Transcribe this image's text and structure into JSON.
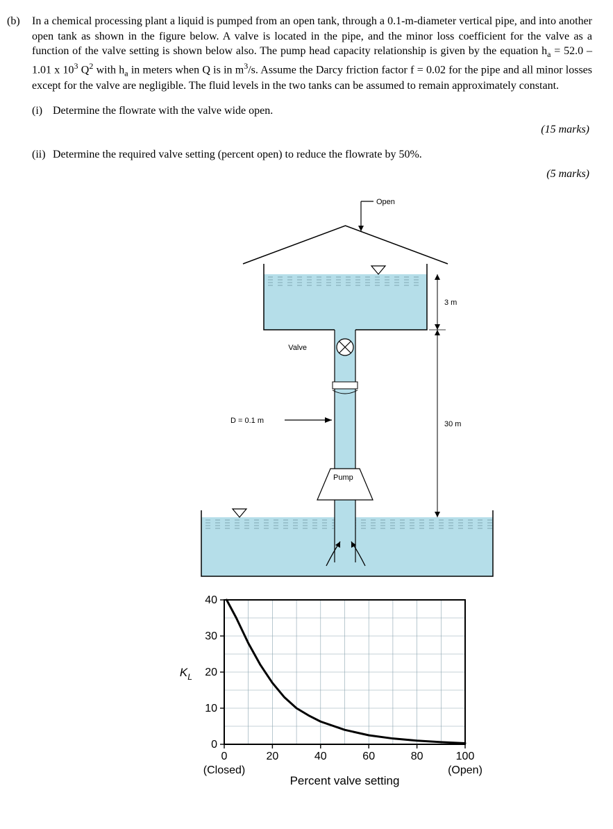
{
  "question_label": "(b)",
  "paragraph_parts": {
    "p1": "In a chemical processing plant a liquid is pumped from an open tank, through a 0.1-m-diameter vertical pipe, and into another open tank as shown in the figure below. A valve is located in the pipe, and the minor loss coefficient for the valve as a function of the valve setting is shown below also. The pump head capacity relationship is given by the equation h",
    "sub1": "a",
    "p2": " = 52.0 – 1.01 x 10",
    "sup1": "3",
    "p3": " Q",
    "sup2": "2",
    "p4": " with h",
    "sub2": "a",
    "p5": " in meters when Q is in m",
    "sup3": "3",
    "p6": "/s. Assume the Darcy friction factor f = 0.02 for the pipe and all minor losses except for the valve are negligible. The fluid levels in the two tanks can be assumed to remain approximately constant."
  },
  "subq1_label": "(i)",
  "subq1_text": "Determine the flowrate with the valve wide open.",
  "marks1": "(15 marks)",
  "subq2_label": "(ii)",
  "subq2_text": "Determine the required valve setting (percent open) to reduce the flowrate by 50%.",
  "marks2": "(5 marks)",
  "diagram": {
    "water_fill": "#b5dee9",
    "water_line": "#668e9a",
    "stroke": "#000000",
    "open_label": "Open",
    "valve_label": "Valve",
    "pump_label": "Pump",
    "d_label": "D = 0.1 m",
    "h_top": "3 m",
    "h_bottom": "30 m",
    "label_fontsize": 11
  },
  "chart": {
    "type": "line",
    "x_label": "Percent valve setting",
    "y_label_main": "K",
    "y_label_sub": "L",
    "x_min": 0,
    "x_max": 100,
    "x_tick_step": 20,
    "y_min": 0,
    "y_max": 40,
    "y_tick_step": 10,
    "x_ticks": [
      "0",
      "20",
      "40",
      "60",
      "80",
      "100"
    ],
    "y_ticks": [
      "0",
      "10",
      "20",
      "30",
      "40"
    ],
    "closed_label": "(Closed)",
    "open_label": "(Open)",
    "background": "#ffffff",
    "grid_color": "#8aa4af",
    "axis_color": "#000000",
    "curve_color": "#000000",
    "curve_width": 3,
    "axis_width": 2,
    "grid_width": 0.6,
    "tick_fontsize": 16,
    "label_fontsize": 17,
    "points": [
      {
        "x": 1,
        "y": 40
      },
      {
        "x": 5,
        "y": 35
      },
      {
        "x": 10,
        "y": 28
      },
      {
        "x": 15,
        "y": 22
      },
      {
        "x": 20,
        "y": 17
      },
      {
        "x": 25,
        "y": 13
      },
      {
        "x": 30,
        "y": 10
      },
      {
        "x": 35,
        "y": 8
      },
      {
        "x": 40,
        "y": 6.3
      },
      {
        "x": 50,
        "y": 4
      },
      {
        "x": 60,
        "y": 2.5
      },
      {
        "x": 70,
        "y": 1.6
      },
      {
        "x": 80,
        "y": 1
      },
      {
        "x": 90,
        "y": 0.6
      },
      {
        "x": 100,
        "y": 0.3
      }
    ]
  }
}
